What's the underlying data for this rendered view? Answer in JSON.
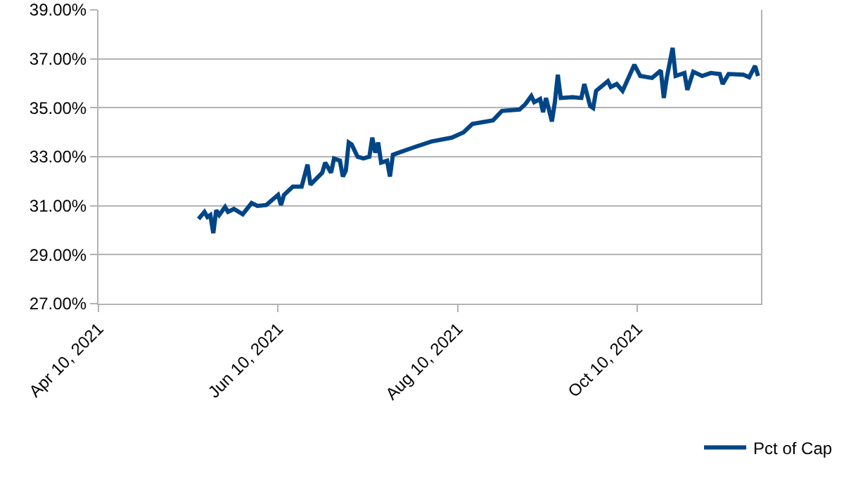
{
  "chart_data": {
    "type": "line",
    "x": [
      "2021-05-14",
      "2021-05-16",
      "2021-05-17",
      "2021-05-18",
      "2021-05-19",
      "2021-05-20",
      "2021-05-21",
      "2021-05-23",
      "2021-05-24",
      "2021-05-26",
      "2021-05-29",
      "2021-06-01",
      "2021-06-03",
      "2021-06-06",
      "2021-06-10",
      "2021-06-11",
      "2021-06-12",
      "2021-06-15",
      "2021-06-18",
      "2021-06-20",
      "2021-06-21",
      "2021-06-25",
      "2021-06-26",
      "2021-06-28",
      "2021-06-29",
      "2021-07-01",
      "2021-07-02",
      "2021-07-03",
      "2021-07-04",
      "2021-07-05",
      "2021-07-07",
      "2021-07-09",
      "2021-07-11",
      "2021-07-12",
      "2021-07-13",
      "2021-07-14",
      "2021-07-15",
      "2021-07-17",
      "2021-07-18",
      "2021-07-19",
      "2021-07-21",
      "2021-07-26",
      "2021-08-01",
      "2021-08-08",
      "2021-08-12",
      "2021-08-15",
      "2021-08-22",
      "2021-08-25",
      "2021-08-31",
      "2021-09-02",
      "2021-09-04",
      "2021-09-05",
      "2021-09-07",
      "2021-09-08",
      "2021-09-09",
      "2021-09-11",
      "2021-09-12",
      "2021-09-13",
      "2021-09-14",
      "2021-09-18",
      "2021-09-21",
      "2021-09-22",
      "2021-09-24",
      "2021-09-25",
      "2021-09-26",
      "2021-09-30",
      "2021-10-01",
      "2021-10-03",
      "2021-10-05",
      "2021-10-07",
      "2021-10-09",
      "2021-10-11",
      "2021-10-15",
      "2021-10-18",
      "2021-10-19",
      "2021-10-20",
      "2021-10-22",
      "2021-10-23",
      "2021-10-26",
      "2021-10-27",
      "2021-10-29",
      "2021-11-01",
      "2021-11-04",
      "2021-11-07",
      "2021-11-08",
      "2021-11-10",
      "2021-11-15",
      "2021-11-17",
      "2021-11-19",
      "2021-11-20"
    ],
    "series": [
      {
        "name": "Pct of Cap",
        "color": "#004586",
        "values": [
          30.46,
          30.75,
          30.54,
          30.62,
          29.88,
          30.82,
          30.62,
          30.95,
          30.75,
          30.87,
          30.65,
          31.11,
          30.99,
          31.03,
          31.44,
          31.03,
          31.44,
          31.78,
          31.78,
          32.68,
          31.86,
          32.35,
          32.76,
          32.35,
          32.93,
          32.84,
          32.19,
          32.43,
          33.58,
          33.5,
          33.0,
          32.93,
          33.0,
          33.78,
          33.17,
          33.58,
          32.76,
          32.84,
          32.19,
          33.08,
          33.17,
          33.38,
          33.62,
          33.78,
          34.0,
          34.34,
          34.49,
          34.87,
          34.93,
          35.15,
          35.48,
          35.23,
          35.36,
          34.82,
          35.4,
          34.44,
          35.23,
          36.35,
          35.4,
          35.43,
          35.4,
          35.97,
          35.07,
          34.99,
          35.69,
          36.09,
          35.85,
          35.97,
          35.69,
          36.22,
          36.76,
          36.3,
          36.22,
          36.52,
          35.4,
          36.22,
          37.45,
          36.3,
          36.42,
          35.73,
          36.47,
          36.3,
          36.42,
          36.38,
          35.97,
          36.38,
          36.35,
          36.25,
          36.71,
          36.3
        ]
      }
    ],
    "xlim": [
      "2021-04-10",
      "2021-11-21"
    ],
    "xticks": [
      {
        "value": "2021-04-10",
        "label": "Apr 10, 2021"
      },
      {
        "value": "2021-06-10",
        "label": "Jun 10, 2021"
      },
      {
        "value": "2021-08-10",
        "label": "Aug 10, 2021"
      },
      {
        "value": "2021-10-10",
        "label": "Oct 10, 2021"
      }
    ],
    "ylim": [
      27,
      39
    ],
    "yticks": [
      {
        "value": 27,
        "label": "27.00%"
      },
      {
        "value": 29,
        "label": "29.00%"
      },
      {
        "value": 31,
        "label": "31.00%"
      },
      {
        "value": 33,
        "label": "33.00%"
      },
      {
        "value": 35,
        "label": "35.00%"
      },
      {
        "value": 37,
        "label": "37.00%"
      },
      {
        "value": 39,
        "label": "39.00%"
      }
    ],
    "grid": "y",
    "legend": "bottom right",
    "marker": "none",
    "line_style": "solid"
  }
}
